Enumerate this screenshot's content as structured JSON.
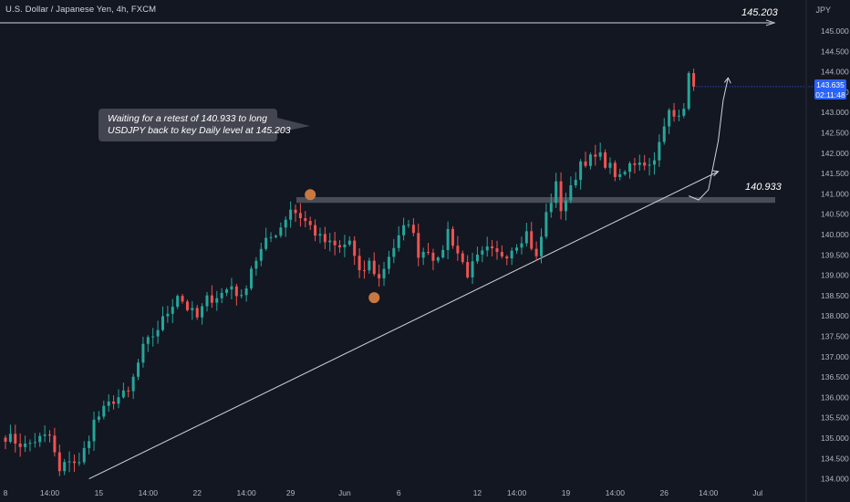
{
  "header": {
    "symbol_title": "U.S. Dollar / Japanese Yen, 4h, FXCM",
    "currency": "JPY"
  },
  "annotations": {
    "callout_line1": "Waiting for a retest of 140.933 to long",
    "callout_line2": "USDJPY back to key Daily level at 145.203",
    "level_top_label": "145.203",
    "level_support_label": "140.933"
  },
  "price_tag": {
    "price": "143.635",
    "countdown": "02:11:48"
  },
  "colors": {
    "background": "#131722",
    "bull": "#26a69a",
    "bear": "#ef5350",
    "axis_text": "#b2b5be",
    "zone": "#5d606b",
    "marker": "#c87941",
    "accent": "#2962ff",
    "callout_bg": "#434651"
  },
  "chart_data": {
    "type": "candlestick",
    "title": "U.S. Dollar / Japanese Yen, 4h, FXCM",
    "y_axis": {
      "unit": "JPY",
      "ylim": [
        134.0,
        145.3
      ],
      "tick_labels": [
        "145.000",
        "144.500",
        "144.000",
        "143.500",
        "143.000",
        "142.500",
        "142.000",
        "141.500",
        "141.000",
        "140.500",
        "140.000",
        "139.500",
        "139.000",
        "138.500",
        "138.000",
        "137.500",
        "137.000",
        "136.500",
        "136.000",
        "135.500",
        "135.000",
        "134.500",
        "134.000"
      ],
      "tick_values": [
        145.0,
        144.5,
        144.0,
        143.5,
        143.0,
        142.5,
        142.0,
        141.5,
        141.0,
        140.5,
        140.0,
        139.5,
        139.0,
        138.5,
        138.0,
        137.5,
        137.0,
        136.5,
        136.0,
        135.5,
        135.0,
        134.5,
        134.0
      ]
    },
    "x_axis": {
      "tick_labels": [
        "8",
        "14:00",
        "15",
        "14:00",
        "22",
        "14:00",
        "29",
        "Jun",
        "6",
        "12",
        "14:00",
        "19",
        "14:00",
        "26",
        "14:00",
        "Jul"
      ],
      "tick_index": [
        0,
        9,
        19,
        29,
        39,
        49,
        58,
        69,
        80,
        96,
        104,
        114,
        124,
        134,
        143,
        153
      ]
    },
    "key_levels": [
      {
        "label": "145.203",
        "value": 145.203
      },
      {
        "label": "140.933",
        "value": 140.933
      }
    ],
    "support_zone": [
      140.78,
      140.92
    ],
    "trendline": {
      "start": {
        "index": 17,
        "value": 134.0
      },
      "end": {
        "index": 145,
        "value": 141.55
      }
    },
    "markers": [
      {
        "index": 62,
        "value": 140.98
      },
      {
        "index": 75,
        "value": 138.45
      }
    ],
    "projection": [
      {
        "index": 139,
        "value": 140.95
      },
      {
        "index": 141,
        "value": 140.85
      },
      {
        "index": 143,
        "value": 141.1
      },
      {
        "index": 145,
        "value": 142.3
      },
      {
        "index": 146,
        "value": 143.3
      },
      {
        "index": 147,
        "value": 143.85
      }
    ],
    "last_price": 143.635,
    "waypoints": [
      [
        0,
        135.05
      ],
      [
        4,
        134.8
      ],
      [
        6,
        134.95
      ],
      [
        9,
        135.05
      ],
      [
        11,
        134.15
      ],
      [
        13,
        134.5
      ],
      [
        15,
        134.35
      ],
      [
        18,
        135.4
      ],
      [
        22,
        135.95
      ],
      [
        25,
        136.1
      ],
      [
        28,
        137.2
      ],
      [
        31,
        137.7
      ],
      [
        33,
        138.1
      ],
      [
        35,
        138.55
      ],
      [
        37,
        138.2
      ],
      [
        39,
        137.95
      ],
      [
        41,
        138.4
      ],
      [
        44,
        138.55
      ],
      [
        46,
        138.75
      ],
      [
        48,
        138.4
      ],
      [
        50,
        139.2
      ],
      [
        53,
        139.8
      ],
      [
        56,
        140.2
      ],
      [
        58,
        140.65
      ],
      [
        60,
        140.45
      ],
      [
        62,
        140.2
      ],
      [
        64,
        139.9
      ],
      [
        66,
        139.75
      ],
      [
        68,
        139.65
      ],
      [
        70,
        139.85
      ],
      [
        72,
        139.0
      ],
      [
        74,
        139.3
      ],
      [
        76,
        138.9
      ],
      [
        78,
        139.5
      ],
      [
        80,
        139.9
      ],
      [
        82,
        140.35
      ],
      [
        84,
        139.55
      ],
      [
        86,
        139.65
      ],
      [
        88,
        139.3
      ],
      [
        90,
        140.1
      ],
      [
        92,
        139.55
      ],
      [
        94,
        139.05
      ],
      [
        96,
        139.4
      ],
      [
        98,
        139.6
      ],
      [
        100,
        139.5
      ],
      [
        102,
        139.55
      ],
      [
        104,
        139.8
      ],
      [
        106,
        140.05
      ],
      [
        108,
        139.4
      ],
      [
        110,
        140.5
      ],
      [
        112,
        141.2
      ],
      [
        113,
        140.65
      ],
      [
        115,
        141.1
      ],
      [
        117,
        141.8
      ],
      [
        119,
        141.85
      ],
      [
        121,
        141.9
      ],
      [
        123,
        141.65
      ],
      [
        125,
        141.35
      ],
      [
        127,
        141.7
      ],
      [
        129,
        141.85
      ],
      [
        131,
        141.7
      ],
      [
        133,
        142.2
      ],
      [
        135,
        143.0
      ],
      [
        136,
        142.9
      ],
      [
        138,
        143.2
      ],
      [
        139,
        143.85
      ],
      [
        140,
        143.635
      ]
    ]
  }
}
